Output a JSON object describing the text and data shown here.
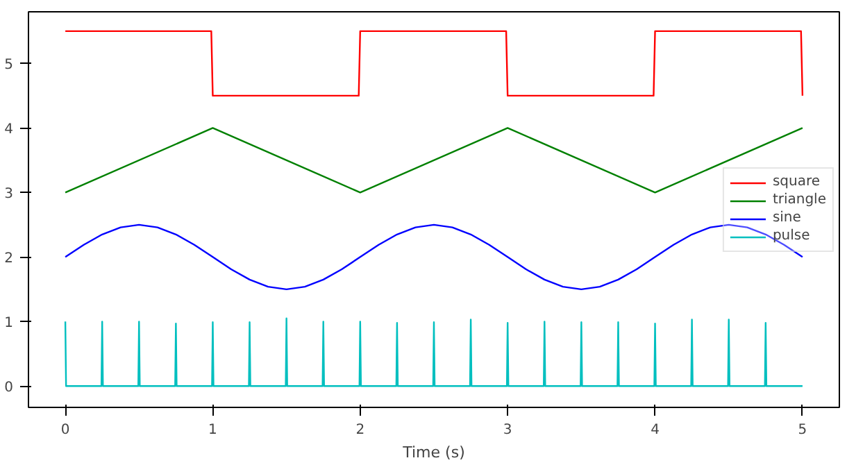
{
  "chart_data": {
    "type": "line",
    "xlabel": "Time (s)",
    "xlim": [
      -0.25,
      5.25
    ],
    "ylim": [
      -0.33,
      5.8
    ],
    "xticks": [
      0,
      1,
      2,
      3,
      4,
      5
    ],
    "yticks": [
      0,
      1,
      2,
      3,
      4,
      5
    ],
    "grid": false,
    "legend": "right",
    "marker": "none",
    "line_style": "solid",
    "series": [
      {
        "name": "square",
        "color": "#ff0000",
        "x": [
          0,
          0.99,
          1.0,
          1.99,
          2.0,
          2.99,
          3.0,
          3.99,
          4.0,
          4.99,
          5.0
        ],
        "values": [
          5.5,
          5.5,
          4.5,
          4.5,
          5.5,
          5.5,
          4.5,
          4.5,
          5.5,
          5.5,
          4.5
        ]
      },
      {
        "name": "triangle",
        "color": "#008000",
        "x": [
          0,
          1,
          2,
          3,
          4,
          5
        ],
        "values": [
          3,
          4,
          3,
          4,
          3,
          4
        ]
      },
      {
        "name": "sine",
        "color": "#0000ff",
        "x": [
          0,
          0.125,
          0.25,
          0.375,
          0.5,
          0.625,
          0.75,
          0.875,
          1,
          1.125,
          1.25,
          1.375,
          1.5,
          1.625,
          1.75,
          1.875,
          2,
          2.125,
          2.25,
          2.375,
          2.5,
          2.625,
          2.75,
          2.875,
          3,
          3.125,
          3.25,
          3.375,
          3.5,
          3.625,
          3.75,
          3.875,
          4,
          4.125,
          4.25,
          4.375,
          4.5,
          4.625,
          4.75,
          4.875,
          5
        ],
        "values": [
          2,
          2.19,
          2.35,
          2.46,
          2.5,
          2.46,
          2.35,
          2.19,
          2,
          1.81,
          1.65,
          1.54,
          1.5,
          1.54,
          1.65,
          1.81,
          2,
          2.19,
          2.35,
          2.46,
          2.5,
          2.46,
          2.35,
          2.19,
          2,
          1.81,
          1.65,
          1.54,
          1.5,
          1.54,
          1.65,
          1.81,
          2,
          2.19,
          2.35,
          2.46,
          2.5,
          2.46,
          2.35,
          2.19,
          2
        ]
      },
      {
        "name": "pulse",
        "color": "#00bfbf",
        "x": [
          0,
          0.005,
          0.245,
          0.25,
          0.255,
          0.495,
          0.5,
          0.505,
          0.745,
          0.75,
          0.755,
          0.995,
          1.0,
          1.005,
          1.245,
          1.25,
          1.255,
          1.495,
          1.5,
          1.505,
          1.745,
          1.75,
          1.755,
          1.995,
          2.0,
          2.005,
          2.245,
          2.25,
          2.255,
          2.495,
          2.5,
          2.505,
          2.745,
          2.75,
          2.755,
          2.995,
          3.0,
          3.005,
          3.245,
          3.25,
          3.255,
          3.495,
          3.5,
          3.505,
          3.745,
          3.75,
          3.755,
          3.995,
          4.0,
          4.005,
          4.245,
          4.25,
          4.255,
          4.495,
          4.5,
          4.505,
          4.745,
          4.75,
          4.755,
          5.0
        ],
        "values": [
          1.0,
          0,
          0,
          1.0,
          0,
          0,
          1.0,
          0,
          0,
          0.97,
          0,
          0,
          0.99,
          0,
          0,
          0.99,
          0,
          0,
          1.05,
          0,
          0,
          1.0,
          0,
          0,
          1.0,
          0,
          0,
          0.98,
          0,
          0,
          0.99,
          0,
          0,
          1.03,
          0,
          0,
          0.98,
          0,
          0,
          1.0,
          0,
          0,
          0.99,
          0,
          0,
          0.99,
          0,
          0,
          0.97,
          0,
          0,
          1.03,
          0,
          0,
          1.03,
          0,
          0,
          0.98,
          0,
          0
        ]
      }
    ]
  }
}
